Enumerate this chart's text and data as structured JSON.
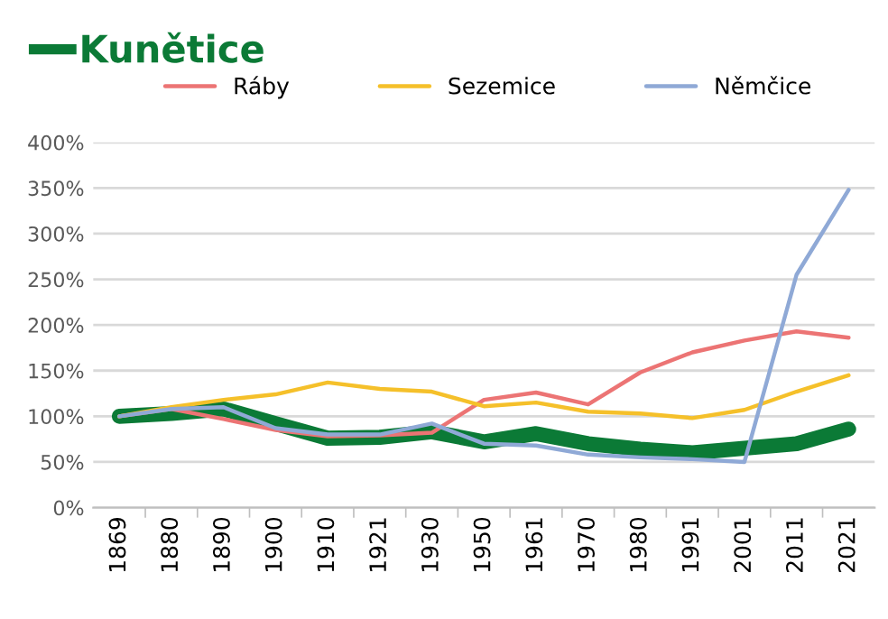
{
  "chart_data": {
    "type": "line",
    "categories": [
      "1869",
      "1880",
      "1890",
      "1900",
      "1910",
      "1921",
      "1930",
      "1950",
      "1961",
      "1970",
      "1980",
      "1991",
      "2001",
      "2011",
      "2021"
    ],
    "series": [
      {
        "name": "Kunětice",
        "color": "#0b7a36",
        "values": [
          100,
          103,
          108,
          92,
          76,
          77,
          83,
          72,
          81,
          70,
          64,
          60,
          65,
          70,
          86
        ]
      },
      {
        "name": "Ráby",
        "color": "#ec7474",
        "values": [
          100,
          108,
          97,
          85,
          78,
          79,
          82,
          118,
          126,
          113,
          148,
          170,
          183,
          193,
          186
        ]
      },
      {
        "name": "Sezemice",
        "color": "#f5c02a",
        "values": [
          100,
          110,
          118,
          124,
          137,
          130,
          127,
          111,
          115,
          105,
          103,
          98,
          107,
          127,
          145
        ]
      },
      {
        "name": "Němčice",
        "color": "#8fa9d6",
        "values": [
          100,
          108,
          110,
          87,
          80,
          80,
          92,
          70,
          68,
          58,
          55,
          53,
          50,
          255,
          348
        ]
      }
    ],
    "ylim": [
      0,
      400
    ],
    "yticks": [
      {
        "value": 0,
        "label": "0%"
      },
      {
        "value": 50,
        "label": "50%"
      },
      {
        "value": 100,
        "label": "100%"
      },
      {
        "value": 150,
        "label": "150%"
      },
      {
        "value": 200,
        "label": "200%"
      },
      {
        "value": 250,
        "label": "250%"
      },
      {
        "value": 300,
        "label": "300%"
      },
      {
        "value": 350,
        "label": "350%"
      },
      {
        "value": 400,
        "label": "400%"
      }
    ],
    "grid": "y",
    "legend": "top",
    "marker": "none",
    "line_style": "solid"
  }
}
